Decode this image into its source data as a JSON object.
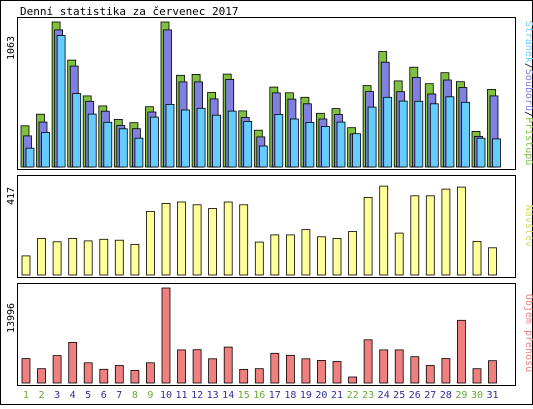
{
  "chart_data": [
    {
      "type": "bar",
      "title": "Denní statistika za červenec 2017",
      "ylabel_max": "1063",
      "legend": [
        "Stránek",
        "Souborů",
        "Přístupů"
      ],
      "legend_separator": "/",
      "categories": [
        "1",
        "2",
        "3",
        "4",
        "5",
        "6",
        "7",
        "8",
        "9",
        "10",
        "11",
        "12",
        "13",
        "14",
        "15",
        "16",
        "17",
        "18",
        "19",
        "20",
        "21",
        "22",
        "23",
        "24",
        "25",
        "26",
        "27",
        "28",
        "29",
        "30",
        "31"
      ],
      "weekend_days": [
        "1",
        "2",
        "8",
        "9",
        "15",
        "16",
        "22",
        "23",
        "29",
        "30"
      ],
      "series": [
        {
          "name": "Přístupů",
          "color": "#80c040",
          "values": [
            302,
            387,
            1063,
            784,
            521,
            448,
            349,
            325,
            442,
            1063,
            672,
            679,
            546,
            681,
            411,
            270,
            586,
            544,
            511,
            394,
            428,
            288,
            597,
            846,
            631,
            732,
            611,
            691,
            625,
            261,
            569
          ]
        },
        {
          "name": "Souborů",
          "color": "#8080e0",
          "values": [
            228,
            329,
            1005,
            740,
            482,
            409,
            304,
            281,
            403,
            1005,
            624,
            624,
            499,
            642,
            363,
            221,
            543,
            498,
            463,
            352,
            385,
            242,
            553,
            768,
            552,
            657,
            535,
            638,
            583,
            224,
            521
          ]
        },
        {
          "name": "Stránek",
          "color": "#66ccff",
          "values": [
            138,
            254,
            963,
            538,
            388,
            328,
            280,
            211,
            366,
            459,
            418,
            430,
            380,
            410,
            334,
            154,
            385,
            352,
            327,
            297,
            329,
            244,
            439,
            511,
            483,
            482,
            463,
            515,
            474,
            211,
            206
          ]
        }
      ],
      "ylim": [
        0,
        1063
      ]
    },
    {
      "type": "bar",
      "ylabel_max": "417",
      "legend": [
        "Návštěv"
      ],
      "series": [
        {
          "name": "Návštěv",
          "color": "#ffff99",
          "values": [
            83,
            159,
            144,
            159,
            148,
            155,
            151,
            133,
            276,
            311,
            317,
            305,
            289,
            317,
            305,
            143,
            174,
            174,
            197,
            166,
            159,
            189,
            337,
            386,
            182,
            344,
            344,
            373,
            382,
            146,
            118
          ]
        }
      ],
      "ylim": [
        0,
        417
      ]
    },
    {
      "type": "bar",
      "ylabel_max": "13996",
      "legend": [
        "Objem přenosu"
      ],
      "series": [
        {
          "name": "Objem přenosu",
          "color": "#f08080",
          "values": [
            3600,
            2110,
            4030,
            5980,
            2980,
            2020,
            2580,
            1850,
            2980,
            13996,
            4870,
            4910,
            3560,
            5290,
            2000,
            2110,
            4370,
            4080,
            3560,
            3330,
            3170,
            890,
            6360,
            4870,
            4870,
            3870,
            2580,
            3610,
            9230,
            2110,
            3290
          ]
        }
      ],
      "ylim": [
        0,
        13996
      ]
    }
  ],
  "colors": {
    "weekday_label": "#2f2f9f",
    "weekend_label": "#66aa33",
    "border": "#000000",
    "background": "#ffffff"
  }
}
